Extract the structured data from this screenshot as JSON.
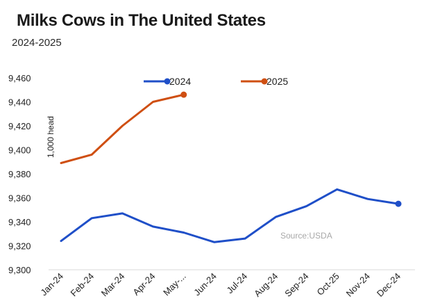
{
  "chart_data": {
    "type": "line",
    "title": "Milks Cows in The United States",
    "subtitle": "2024-2025",
    "ylabel": "1,000 head",
    "xlabel": "",
    "source": "Source:USDA",
    "categories": [
      "Jan-24",
      "Feb-24",
      "Mar-24",
      "Apr-24",
      "May-...",
      "Jun-24",
      "Jul-24",
      "Aug-24",
      "Sep-24",
      "Oct-25",
      "Nov-24",
      "Dec-24"
    ],
    "ylim": [
      9300,
      9460
    ],
    "yticks": [
      9300,
      9320,
      9340,
      9360,
      9380,
      9400,
      9420,
      9440,
      9460
    ],
    "ytick_labels": [
      "9,300",
      "9,320",
      "9,340",
      "9,360",
      "9,380",
      "9,400",
      "9,420",
      "9,440",
      "9,460"
    ],
    "grid": false,
    "legend_position": "top",
    "series": [
      {
        "name": "2024",
        "color": "#1f4fc8",
        "values": [
          9324,
          9343,
          9347,
          9336,
          9331,
          9323,
          9326,
          9344,
          9353,
          9367,
          9359,
          9355
        ]
      },
      {
        "name": "2025",
        "color": "#cf4f12",
        "values": [
          9389,
          9396,
          9420,
          9440,
          9446,
          null,
          null,
          null,
          null,
          null,
          null,
          null
        ]
      }
    ]
  }
}
